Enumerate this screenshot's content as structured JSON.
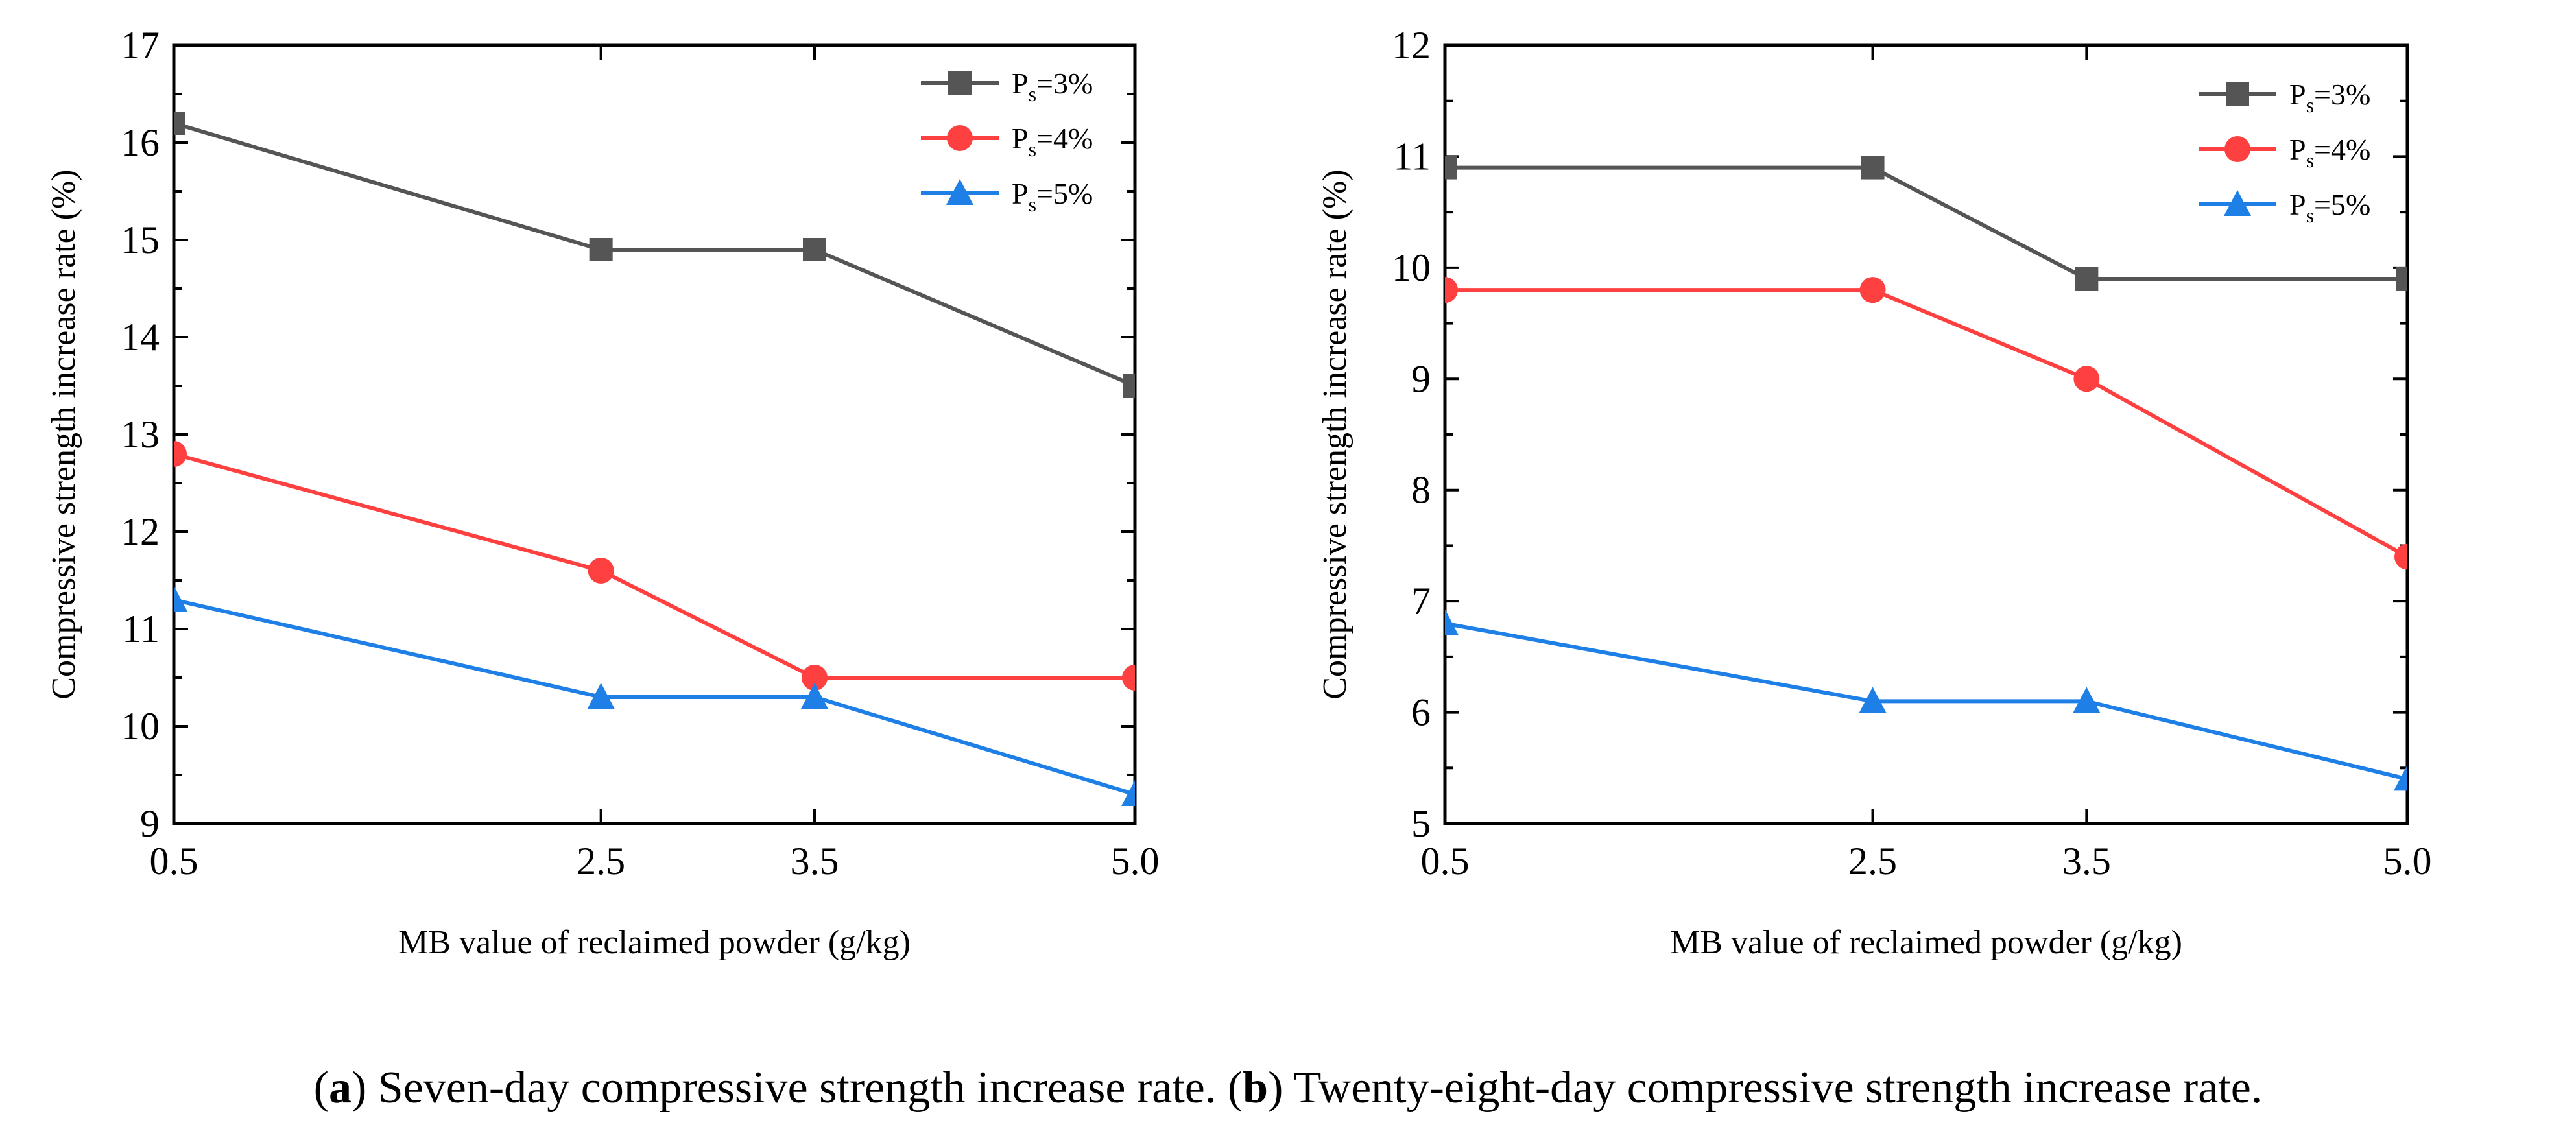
{
  "chart_data": [
    {
      "type": "line",
      "title": "",
      "xlabel": "MB value of reclaimed powder (g/kg)",
      "ylabel": "Compressive strength increase rate (%)",
      "x": [
        0.5,
        2.5,
        3.5,
        5.0
      ],
      "x_tick_labels": [
        "0.5",
        "2.5",
        "3.5",
        "5.0"
      ],
      "xlim": [
        0.5,
        5.0
      ],
      "ylim": [
        9,
        17
      ],
      "y_ticks": [
        9,
        10,
        11,
        12,
        13,
        14,
        15,
        16,
        17
      ],
      "legend_position": "top-right",
      "series": [
        {
          "name": "Ps=3%",
          "label_main": "P",
          "label_sub": "s",
          "label_rest": "=3%",
          "color": "#555555",
          "marker": "square",
          "values": [
            16.2,
            14.9,
            14.9,
            13.5
          ]
        },
        {
          "name": "Ps=4%",
          "label_main": "P",
          "label_sub": "s",
          "label_rest": "=4%",
          "color": "#ff4040",
          "marker": "circle",
          "values": [
            12.8,
            11.6,
            10.5,
            10.5
          ]
        },
        {
          "name": "Ps=5%",
          "label_main": "P",
          "label_sub": "s",
          "label_rest": "=5%",
          "color": "#1e7fe6",
          "marker": "triangle",
          "values": [
            11.3,
            10.3,
            10.3,
            9.3
          ]
        }
      ]
    },
    {
      "type": "line",
      "title": "",
      "xlabel": "MB value of reclaimed powder (g/kg)",
      "ylabel": "Compressive strength increase rate (%)",
      "x": [
        0.5,
        2.5,
        3.5,
        5.0
      ],
      "x_tick_labels": [
        "0.5",
        "2.5",
        "3.5",
        "5.0"
      ],
      "xlim": [
        0.5,
        5.0
      ],
      "ylim": [
        5,
        12
      ],
      "y_ticks": [
        5,
        6,
        7,
        8,
        9,
        10,
        11,
        12
      ],
      "legend_position": "top-right",
      "series": [
        {
          "name": "Ps=3%",
          "label_main": "P",
          "label_sub": "s",
          "label_rest": "=3%",
          "color": "#555555",
          "marker": "square",
          "values": [
            10.9,
            10.9,
            9.9,
            9.9
          ]
        },
        {
          "name": "Ps=4%",
          "label_main": "P",
          "label_sub": "s",
          "label_rest": "=4%",
          "color": "#ff4040",
          "marker": "circle",
          "values": [
            9.8,
            9.8,
            9.0,
            7.4
          ]
        },
        {
          "name": "Ps=5%",
          "label_main": "P",
          "label_sub": "s",
          "label_rest": "=5%",
          "color": "#1e7fe6",
          "marker": "triangle",
          "values": [
            6.8,
            6.1,
            6.1,
            5.4
          ]
        }
      ]
    }
  ],
  "captions": [
    {
      "open": "(",
      "letter": "a",
      "close": ")",
      "text": " Seven-day compressive strength increase rate."
    },
    {
      "open": "(",
      "letter": "b",
      "close": ")",
      "text": " Twenty-eight-day compressive strength increase rate."
    }
  ]
}
